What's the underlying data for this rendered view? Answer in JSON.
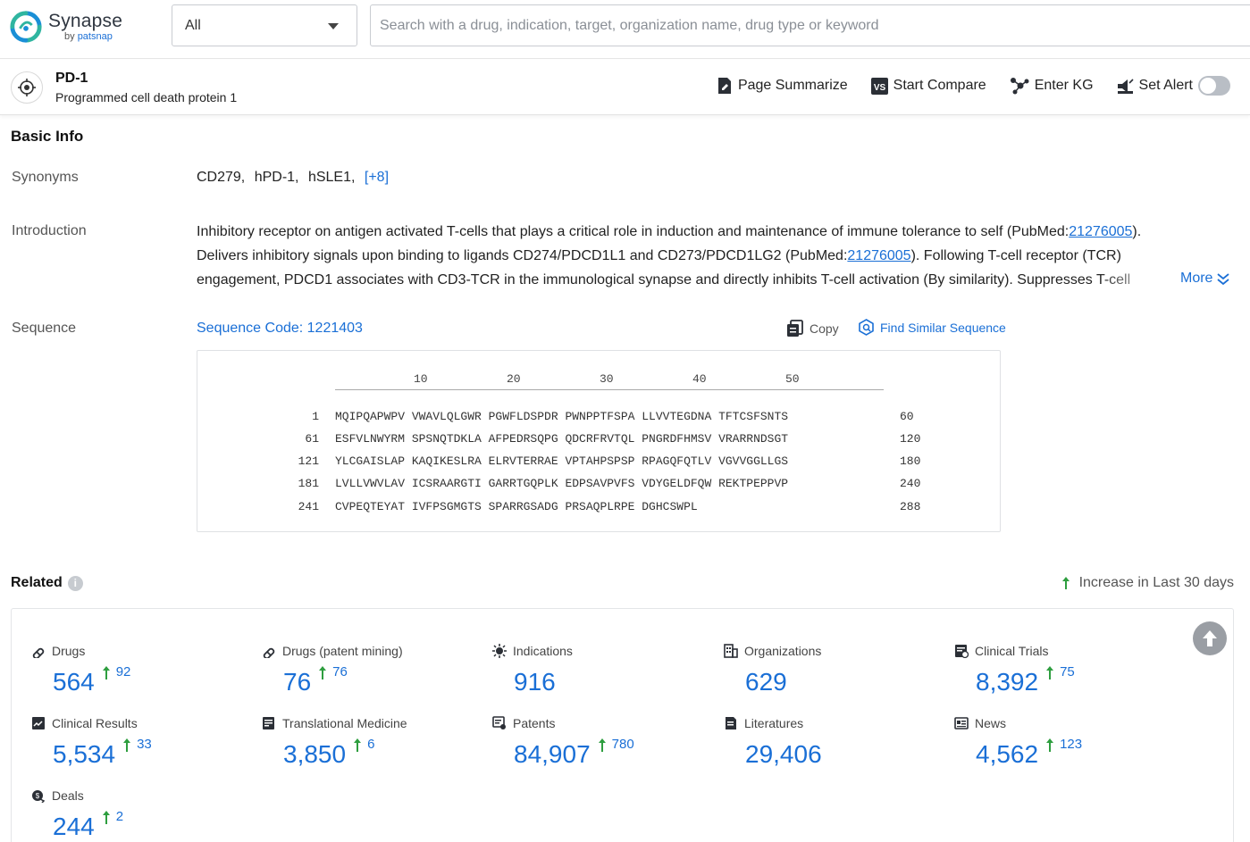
{
  "brand": {
    "name": "Synapse",
    "by": "by",
    "company": "patsnap"
  },
  "search": {
    "scope": "All",
    "placeholder": "Search with a drug, indication, target, organization name, drug type or keyword"
  },
  "target": {
    "name": "PD-1",
    "full_name": "Programmed cell death protein 1"
  },
  "actions": {
    "summarize": "Page Summarize",
    "compare": "Start Compare",
    "kg": "Enter KG",
    "alert": "Set Alert",
    "alert_enabled": false
  },
  "basic_info": {
    "title": "Basic Info",
    "synonyms_label": "Synonyms",
    "synonyms": [
      "CD279,",
      "hPD-1,",
      "hSLE1,"
    ],
    "synonyms_more": "[+8]",
    "introduction_label": "Introduction",
    "intro_part1": "Inhibitory receptor on antigen activated T-cells that plays a critical role in induction and maintenance of immune tolerance to self (PubMed:",
    "intro_link1": "21276005",
    "intro_part2": "). Delivers inhibitory signals upon binding to ligands CD274/PDCD1L1 and CD273/PDCD1LG2 (PubMed:",
    "intro_link2": "21276005",
    "intro_part3": "). Following T-cell receptor (TCR) engagement, PDCD1 associates with CD3-TCR in the immunological synapse and directly inhibits T-cell activation (By similarity). Suppresses T-cell activation through the recruitment",
    "intro_more": "More",
    "sequence_label": "Sequence",
    "sequence_code": "Sequence Code: 1221403",
    "copy_label": "Copy",
    "find_similar_label": "Find Similar Sequence"
  },
  "sequence": {
    "ruler": [
      "10",
      "20",
      "30",
      "40",
      "50"
    ],
    "rows": [
      {
        "start": "1",
        "residues": "MQIPQAPWPV VWAVLQLGWR PGWFLDSPDR PWNPPTFSPA LLVVTEGDNA TFTCSFSNTS",
        "end": "60"
      },
      {
        "start": "61",
        "residues": "ESFVLNWYRM SPSNQTDKLA AFPEDRSQPG QDCRFRVTQL PNGRDFHMSV VRARRNDSGT",
        "end": "120"
      },
      {
        "start": "121",
        "residues": "YLCGAISLAP KAQIKESLRA ELRVTERRAE VPTAHPSPSP RPAGQFQTLV VGVVGGLLGS",
        "end": "180"
      },
      {
        "start": "181",
        "residues": "LVLLVWVLAV ICSRAARGTI GARRTGQPLK EDPSAVPVFS VDYGELDFQW REKTPEPPVP",
        "end": "240"
      },
      {
        "start": "241",
        "residues": "CVPEQTEYAT IVFPSGMGTS SPARRGSADG PRSAQPLRPE DGHCSWPL",
        "end": "288"
      }
    ]
  },
  "related": {
    "title": "Related",
    "info": "i",
    "increase_legend": "Increase in Last 30 days",
    "colors": {
      "accent": "#1a6fd6",
      "increase": "#2e9e3f"
    },
    "stats": [
      {
        "label": "Drugs",
        "icon": "pill-icon",
        "value": "564",
        "increase": "92"
      },
      {
        "label": "Drugs (patent mining)",
        "icon": "pill-icon",
        "value": "76",
        "increase": "76"
      },
      {
        "label": "Indications",
        "icon": "virus-icon",
        "value": "916",
        "increase": null
      },
      {
        "label": "Organizations",
        "icon": "building-icon",
        "value": "629",
        "increase": null
      },
      {
        "label": "Clinical Trials",
        "icon": "clipboard-icon",
        "value": "8,392",
        "increase": "75"
      },
      {
        "label": "Clinical Results",
        "icon": "chart-doc-icon",
        "value": "5,534",
        "increase": "33"
      },
      {
        "label": "Translational Medicine",
        "icon": "doc-icon",
        "value": "3,850",
        "increase": "6"
      },
      {
        "label": "Patents",
        "icon": "patent-icon",
        "value": "84,907",
        "increase": "780"
      },
      {
        "label": "Literatures",
        "icon": "book-icon",
        "value": "29,406",
        "increase": null
      },
      {
        "label": "News",
        "icon": "news-icon",
        "value": "4,562",
        "increase": "123"
      },
      {
        "label": "Deals",
        "icon": "deal-icon",
        "value": "244",
        "increase": "2"
      }
    ]
  }
}
